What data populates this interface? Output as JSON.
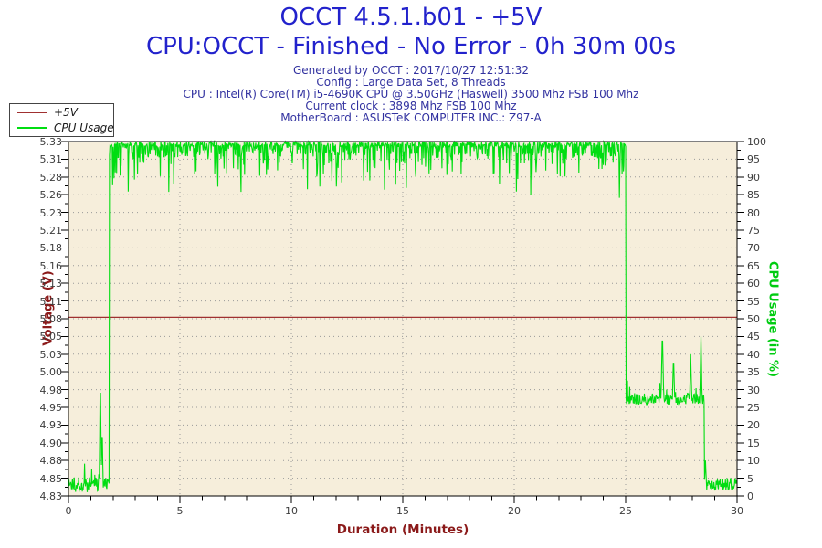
{
  "header": {
    "title_line1": "OCCT 4.5.1.b01 - +5V",
    "title_line2": "CPU:OCCT - Finished - No Error - 0h 30m 00s",
    "info_lines": [
      "Generated by OCCT : 2017/10/27 12:51:32",
      "Config : Large Data Set, 8 Threads",
      "CPU : Intel(R) Core(TM) i5-4690K CPU @ 3.50GHz (Haswell) 3500 Mhz FSB 100 Mhz",
      "Current clock : 3898 Mhz FSB 100 Mhz",
      "MotherBoard : ASUSTeK COMPUTER INC.: Z97-A"
    ]
  },
  "legend": {
    "entries": [
      {
        "label": "+5V",
        "color": "#a03030",
        "thickness": 1
      },
      {
        "label": "CPU Usage",
        "color": "#00dd11",
        "thickness": 2
      }
    ]
  },
  "colors": {
    "title_text": "#2222cc",
    "info_text": "#3232a0",
    "plot_background": "#f6eedb",
    "plot_border": "#000000",
    "grid_dots": "#999999",
    "tick_text": "#3c3c3c",
    "voltage_accent": "#8b1a1a",
    "cpu_accent": "#00cc11"
  },
  "chart_data": {
    "type": "line",
    "title": "OCCT 4.5.1.b01 - +5V",
    "subtitle": "CPU:OCCT - Finished - No Error - 0h 30m 00s",
    "grid": "dotted",
    "legend_position": "top-left",
    "plot_bg": "#f6eedb",
    "x_axis": {
      "label": "Duration (Minutes)",
      "min": 0,
      "max": 30,
      "major_tick_step": 5,
      "minor_tick_step": 1,
      "tick_labels": [
        "0",
        "5",
        "10",
        "15",
        "20",
        "25",
        "30"
      ]
    },
    "y_axis_left": {
      "label": "Voltage (V)",
      "min": 4.83,
      "max": 5.33,
      "tick_labels": [
        "5.33",
        "5.31",
        "5.28",
        "5.26",
        "5.23",
        "5.21",
        "5.18",
        "5.16",
        "5.13",
        "5.11",
        "5.08",
        "5.05",
        "5.03",
        "5.00",
        "4.98",
        "4.95",
        "4.93",
        "4.90",
        "4.88",
        "4.85",
        "4.83"
      ]
    },
    "y_axis_right": {
      "label": "CPU Usage (in %)",
      "min": 0,
      "max": 100,
      "tick_labels": [
        "100",
        "95",
        "90",
        "85",
        "80",
        "75",
        "70",
        "65",
        "60",
        "55",
        "50",
        "45",
        "40",
        "35",
        "30",
        "25",
        "20",
        "15",
        "10",
        "5",
        "0"
      ]
    },
    "series": [
      {
        "name": "+5V",
        "axis": "left",
        "color": "#a03030",
        "type": "constant",
        "value": 5.082
      },
      {
        "name": "CPU Usage",
        "axis": "right",
        "color": "#00dd11",
        "type": "piecewise_noisy",
        "sample_step_minutes": 0.02,
        "segments": [
          {
            "t0": 0.0,
            "t1": 1.38,
            "base": 3.2,
            "noise": 2.2,
            "bump_prob": 0.15,
            "bump_max": 5
          },
          {
            "t0": 1.38,
            "t1": 1.56,
            "base": 5.0,
            "noise": 3.0
          },
          {
            "t0": 1.56,
            "t1": 1.84,
            "base": 3.5,
            "noise": 2.0
          },
          {
            "t0": 1.84,
            "t1": 25.0,
            "base": 99.3,
            "noise": 0.8,
            "dip_tiers": [
              [
                0.35,
                0,
                4
              ],
              [
                0.08,
                4,
                5
              ],
              [
                0.02,
                9,
                6
              ]
            ],
            "max": 100
          },
          {
            "t0": 25.0,
            "t1": 28.52,
            "base": 27.3,
            "noise": 1.6,
            "bump_prob": 0.12,
            "bump_max": 4
          },
          {
            "t0": 28.52,
            "t1": 30.001,
            "base": 3.2,
            "noise": 1.8
          }
        ],
        "spikes": [
          {
            "t": 1.43,
            "peak": 35,
            "width": 0.1
          },
          {
            "t": 1.51,
            "peak": 20,
            "width": 0.08
          },
          {
            "t": 26.65,
            "peak": 47,
            "width": 0.12
          },
          {
            "t": 27.15,
            "peak": 40,
            "width": 0.1
          },
          {
            "t": 27.92,
            "peak": 40,
            "width": 0.1
          },
          {
            "t": 28.38,
            "peak": 45,
            "width": 0.1
          },
          {
            "t": 28.58,
            "peak": 10,
            "width": 0.1
          }
        ],
        "summary": "Idle ~3% until 1.8 min, full load 95-100% from 1.8 to 25 min, ~27% with spikes to 40-47% until 28.5 min, idle ~3% to 30 min"
      }
    ]
  }
}
